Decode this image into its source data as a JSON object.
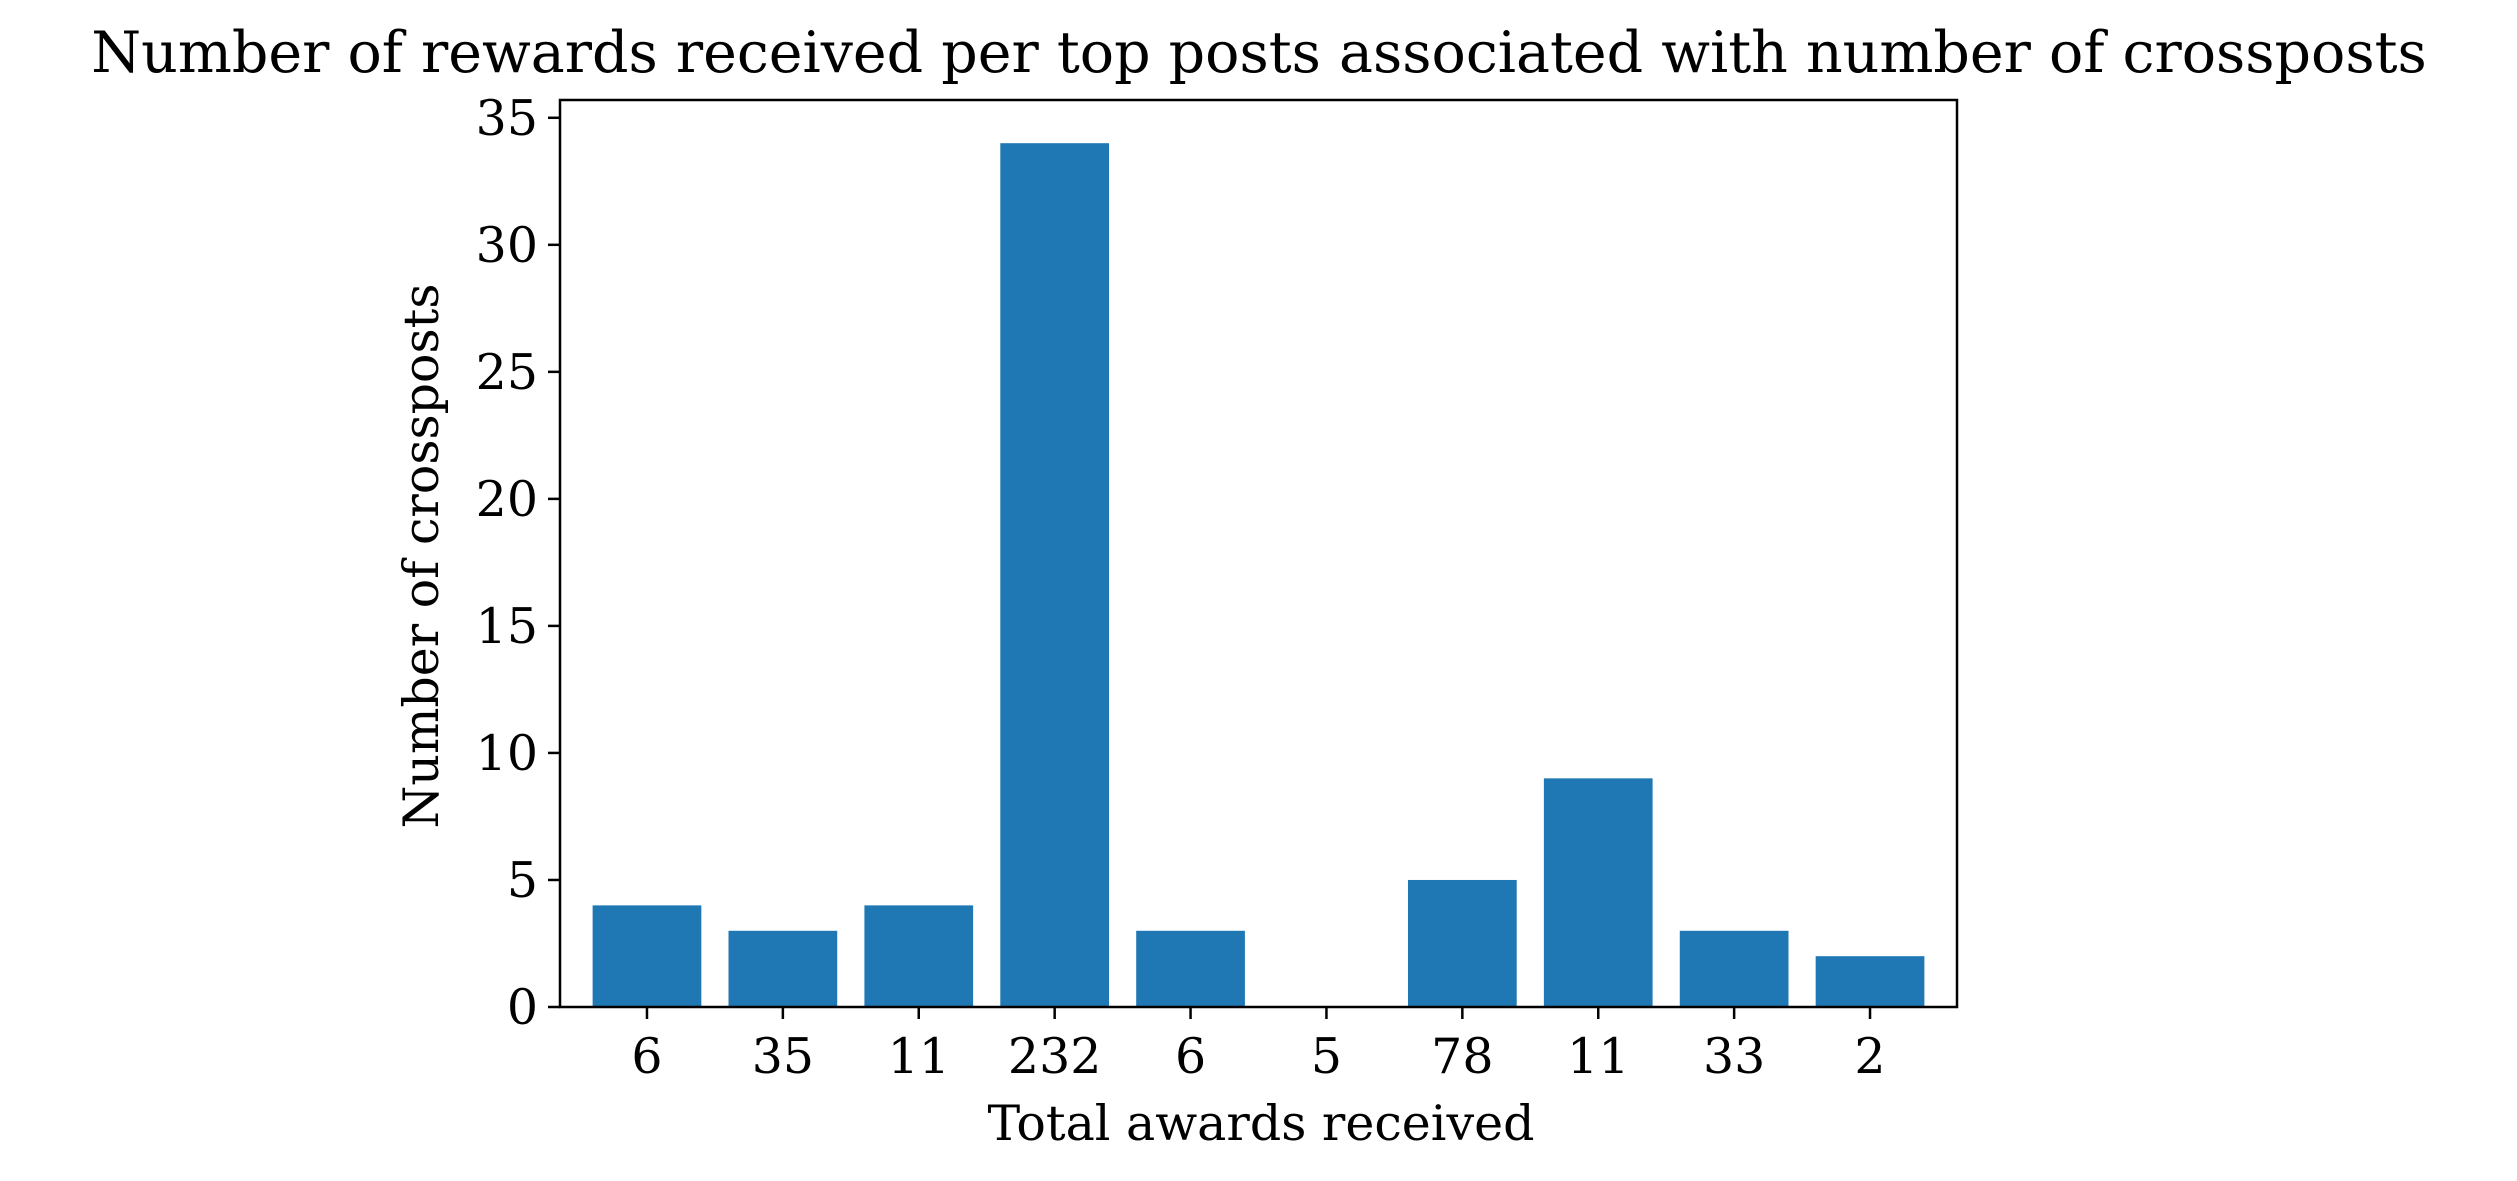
{
  "chart_data": {
    "type": "bar",
    "title": "Number of rewards received per top posts associated with number of crossposts",
    "xlabel": "Total awards received",
    "ylabel": "Number of crossposts",
    "categories": [
      "6",
      "35",
      "11",
      "232",
      "6",
      "5",
      "78",
      "11",
      "33",
      "2"
    ],
    "values": [
      4,
      3,
      4,
      34,
      3,
      0,
      5,
      9,
      3,
      2
    ],
    "ylim": [
      0,
      35.7
    ],
    "yticks": [
      0,
      5,
      10,
      15,
      20,
      25,
      30,
      35
    ],
    "grid": false,
    "bar_color": "#1f77b4"
  }
}
